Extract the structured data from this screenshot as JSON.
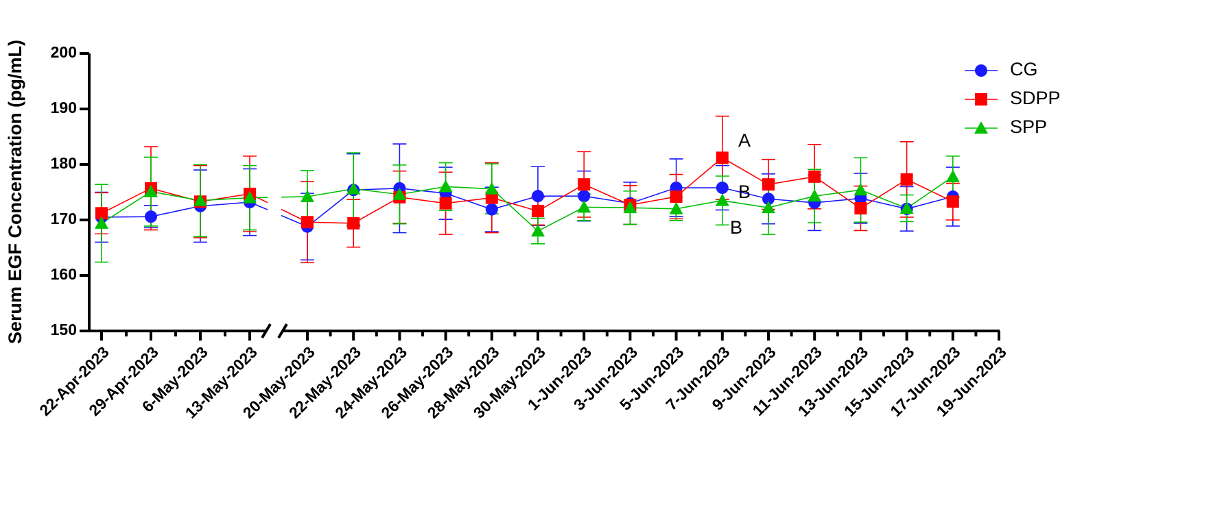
{
  "chart_data": {
    "type": "line",
    "ylabel": "Serum EGF Concentration (pg/mL)",
    "categories": [
      "22-Apr-2023",
      "29-Apr-2023",
      "6-May-2023",
      "13-May-2023",
      "20-May-2023",
      "22-May-2023",
      "24-May-2023",
      "26-May-2023",
      "28-May-2023",
      "30-May-2023",
      "1-Jun-2023",
      "3-Jun-2023",
      "5-Jun-2023",
      "7-Jun-2023",
      "9-Jun-2023",
      "11-Jun-2023",
      "13-Jun-2023",
      "15-Jun-2023",
      "17-Jun-2023",
      "19-Jun-2023"
    ],
    "ylim": [
      150,
      200
    ],
    "yticks": [
      150,
      160,
      170,
      180,
      190,
      200
    ],
    "series": [
      {
        "name": "CG",
        "color": "#1a1aff",
        "marker": "circle",
        "values": [
          170.5,
          170.6,
          172.5,
          173.2,
          168.8,
          175.4,
          175.7,
          174.8,
          171.9,
          174.3,
          174.3,
          173,
          175.8,
          175.8,
          173.8,
          173.1,
          173.9,
          172,
          174.2,
          null
        ],
        "errors": [
          4.5,
          2,
          6.5,
          6,
          6,
          6.5,
          8,
          4.7,
          4,
          5.3,
          4.5,
          3.8,
          5.2,
          4,
          4.5,
          5,
          4.5,
          4,
          5.3,
          null
        ]
      },
      {
        "name": "SDPP",
        "color": "#ff0000",
        "marker": "square",
        "values": [
          171.2,
          175.7,
          173.3,
          174.7,
          169.6,
          169.4,
          174.1,
          173,
          174,
          171.6,
          176.4,
          172.7,
          174.2,
          181.2,
          176.4,
          177.8,
          172.1,
          177.3,
          173.3,
          null
        ],
        "errors": [
          3.7,
          7.5,
          6.5,
          6.8,
          7.3,
          4.3,
          4.7,
          5.6,
          6.3,
          2.5,
          5.9,
          3.5,
          4,
          7.5,
          4.5,
          5.8,
          4,
          6.8,
          3.3,
          null
        ]
      },
      {
        "name": "SPP",
        "color": "#00c000",
        "marker": "triangle",
        "values": [
          169.4,
          175.1,
          173.5,
          174,
          174.2,
          175.6,
          174.6,
          176,
          175.6,
          168,
          172.3,
          172.2,
          172,
          173.5,
          172.2,
          174.3,
          175.4,
          172.1,
          177.8,
          null
        ],
        "errors": [
          7,
          6.2,
          6.5,
          5.8,
          4.7,
          6.5,
          5.3,
          4.3,
          4.5,
          2.3,
          2.4,
          3,
          2.1,
          4.4,
          4.8,
          4.8,
          5.8,
          2.4,
          3.7,
          null
        ]
      }
    ],
    "annotations": [
      "A",
      "B",
      "B"
    ],
    "legend": "top-right"
  }
}
